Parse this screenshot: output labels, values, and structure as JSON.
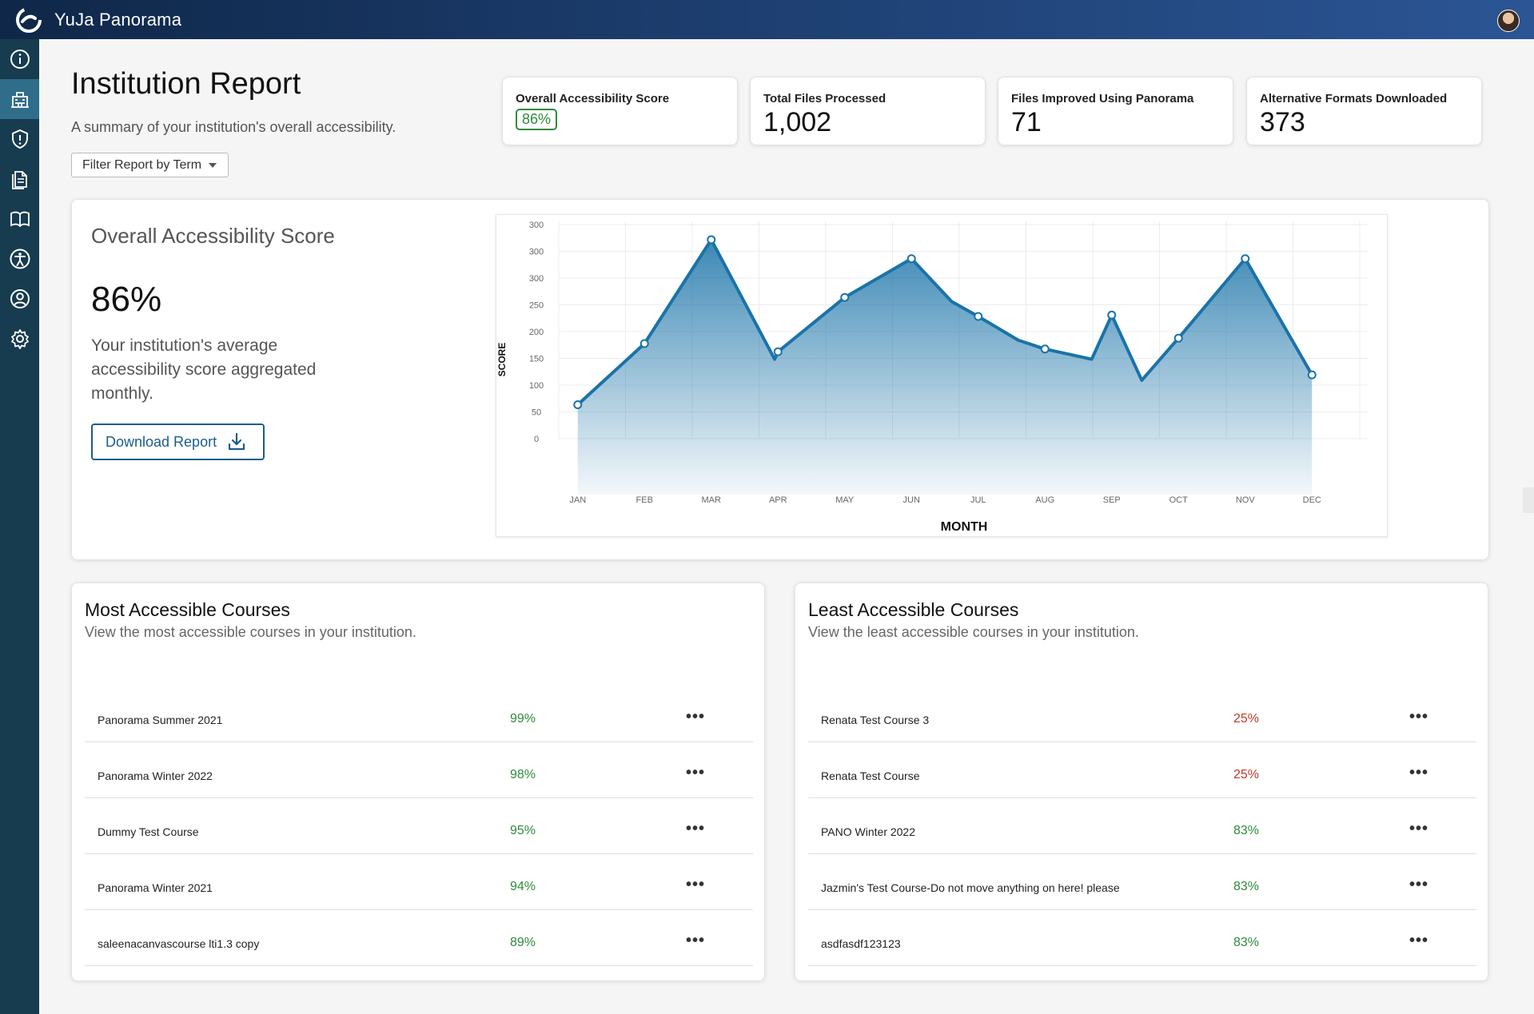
{
  "app": {
    "title": "YuJa Panorama"
  },
  "sidebar": {
    "items": [
      {
        "icon": "info-icon",
        "active": false
      },
      {
        "icon": "institution-icon",
        "active": true
      },
      {
        "icon": "shield-alert-icon",
        "active": false
      },
      {
        "icon": "documents-icon",
        "active": false
      },
      {
        "icon": "book-icon",
        "active": false
      },
      {
        "icon": "accessibility-icon",
        "active": false
      },
      {
        "icon": "user-circle-icon",
        "active": false
      },
      {
        "icon": "gear-icon",
        "active": false
      }
    ]
  },
  "header": {
    "title": "Institution Report",
    "subtitle": "A summary of your institution's overall accessibility.",
    "filter_label": "Filter Report by Term"
  },
  "stats": [
    {
      "label": "Overall Accessibility Score",
      "value": "86%"
    },
    {
      "label": "Total Files Processed",
      "value": "1,002"
    },
    {
      "label": "Files Improved Using Panorama",
      "value": "71"
    },
    {
      "label": "Alternative Formats Downloaded",
      "value": "373"
    }
  ],
  "score_panel": {
    "title": "Overall Accessibility Score",
    "score": "86%",
    "description": "Your institution's average accessibility score aggregated monthly.",
    "download_label": "Download Report"
  },
  "chart_data": {
    "type": "area",
    "xlabel": "MONTH",
    "ylabel": "SCORE",
    "y_tick_labels": [
      "0",
      "50",
      "100",
      "150",
      "200",
      "250",
      "300",
      "300",
      "300"
    ],
    "x": [
      "JAN",
      "FEB",
      "MAR",
      "APR",
      "MAY",
      "JUN",
      "JUL",
      "AUG",
      "SEP",
      "OCT",
      "NOV",
      "DEC"
    ],
    "series": [
      {
        "values": [
          50,
          140,
          293,
          128,
          208,
          265,
          180,
          132,
          182,
          148,
          265,
          94
        ]
      }
    ],
    "line_path": [
      [
        0,
        50
      ],
      [
        1,
        140
      ],
      [
        2,
        293
      ],
      [
        2.95,
        117
      ],
      [
        3,
        128
      ],
      [
        4,
        208
      ],
      [
        5,
        265
      ],
      [
        5.6,
        202
      ],
      [
        6,
        180
      ],
      [
        6.6,
        145
      ],
      [
        7,
        132
      ],
      [
        7.7,
        117
      ],
      [
        8,
        182
      ],
      [
        8.45,
        86
      ],
      [
        9,
        148
      ],
      [
        10,
        265
      ],
      [
        11,
        94
      ]
    ],
    "grid": true,
    "accent_color": "#1a73a8"
  },
  "most_accessible": {
    "title": "Most Accessible Courses",
    "subtitle": "View the most accessible courses in your institution.",
    "rows": [
      {
        "name": "Panorama Summer 2021",
        "score": "99%",
        "status": "good"
      },
      {
        "name": "Panorama Winter 2022",
        "score": "98%",
        "status": "good"
      },
      {
        "name": "Dummy Test Course",
        "score": "95%",
        "status": "good"
      },
      {
        "name": "Panorama Winter 2021",
        "score": "94%",
        "status": "good"
      },
      {
        "name": "saleenacanvascourse lti1.3 copy",
        "score": "89%",
        "status": "good"
      }
    ]
  },
  "least_accessible": {
    "title": "Least Accessible Courses",
    "subtitle": "View the least accessible courses in your institution.",
    "rows": [
      {
        "name": "Renata Test Course 3",
        "score": "25%",
        "status": "bad"
      },
      {
        "name": "Renata Test Course",
        "score": "25%",
        "status": "bad"
      },
      {
        "name": "PANO Winter 2022",
        "score": "83%",
        "status": "good"
      },
      {
        "name": "Jazmin's Test Course-Do not move anything on here! please",
        "score": "83%",
        "status": "good"
      },
      {
        "name": "asdfasdf123123",
        "score": "83%",
        "status": "good"
      }
    ]
  },
  "more_icon": "•••",
  "colors": {
    "good": "#2e8b3a",
    "bad": "#c0392b",
    "accent": "#1a5e8a",
    "topbar_start": "#0f2748",
    "topbar_end": "#2b5594",
    "sidebar": "#173b4f"
  }
}
